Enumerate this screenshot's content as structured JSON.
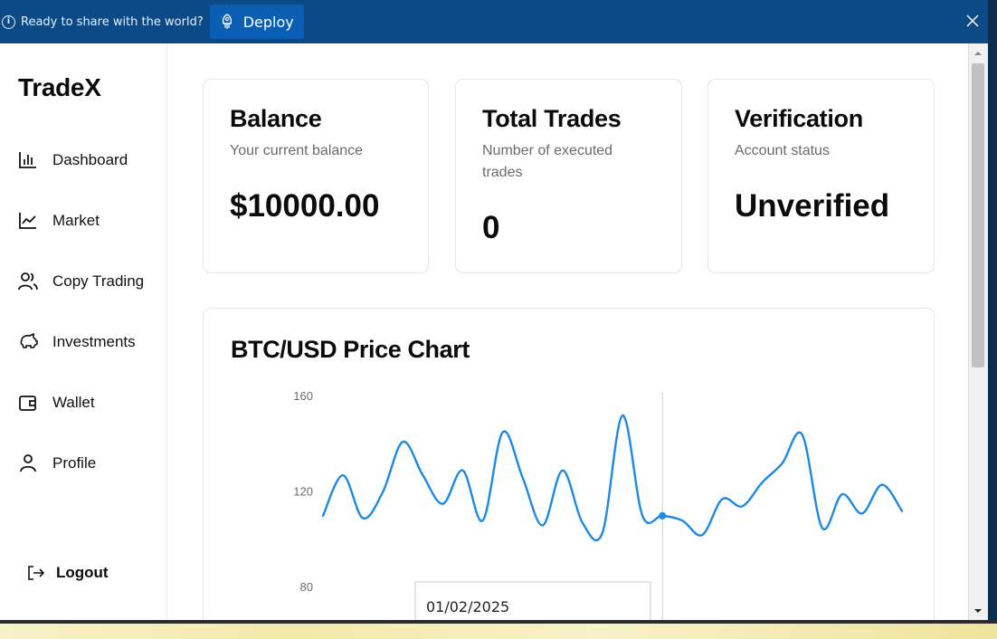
{
  "topbar": {
    "message": "Ready to share with the world?",
    "deploy_label": "Deploy"
  },
  "sidebar": {
    "brand": "TradeX",
    "items": [
      {
        "label": "Dashboard",
        "icon": "bar-chart-icon"
      },
      {
        "label": "Market",
        "icon": "line-chart-icon"
      },
      {
        "label": "Copy Trading",
        "icon": "users-icon"
      },
      {
        "label": "Investments",
        "icon": "piggy-bank-icon"
      },
      {
        "label": "Wallet",
        "icon": "wallet-icon"
      },
      {
        "label": "Profile",
        "icon": "user-icon"
      }
    ],
    "logout_label": "Logout"
  },
  "cards": {
    "balance": {
      "title": "Balance",
      "subtitle": "Your current balance",
      "value": "$10000.00"
    },
    "trades": {
      "title": "Total Trades",
      "subtitle": "Number of executed trades",
      "value": "0"
    },
    "verification": {
      "title": "Verification",
      "subtitle": "Account status",
      "value": "Unverified"
    }
  },
  "chart": {
    "title": "BTC/USD Price Chart",
    "tooltip_date": "01/02/2025"
  },
  "chart_data": {
    "type": "line",
    "title": "BTC/USD Price Chart",
    "xlabel": "",
    "ylabel": "",
    "y_ticks": [
      160,
      120,
      80
    ],
    "ylim": [
      80,
      160
    ],
    "grid": false,
    "series": [
      {
        "values": [
          110,
          127,
          109,
          120,
          141,
          127,
          115,
          129,
          108,
          145,
          126,
          106,
          129,
          107,
          103,
          152,
          110,
          110,
          108,
          102,
          117,
          114,
          124,
          132,
          144,
          105,
          119,
          111,
          123,
          112
        ]
      }
    ],
    "highlight_index": 17,
    "color": "#1e88e5"
  },
  "colors": {
    "topbar": "#0b4a86",
    "deploy_button": "#0a5fb4",
    "line": "#1e88e5"
  }
}
